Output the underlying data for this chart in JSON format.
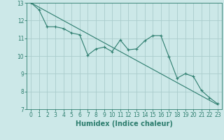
{
  "xlabel": "Humidex (Indice chaleur)",
  "ylabel": "",
  "bg_color": "#cce8e8",
  "grid_color": "#aacccc",
  "line_color": "#2d7d6e",
  "x_values": [
    0,
    1,
    2,
    3,
    4,
    5,
    6,
    7,
    8,
    9,
    10,
    11,
    12,
    13,
    14,
    15,
    16,
    17,
    18,
    19,
    20,
    21,
    22,
    23
  ],
  "y_values": [
    13.0,
    12.6,
    11.65,
    11.65,
    11.55,
    11.3,
    11.2,
    10.05,
    10.4,
    10.5,
    10.25,
    10.9,
    10.35,
    10.4,
    10.85,
    11.15,
    11.15,
    9.95,
    8.75,
    9.0,
    8.85,
    8.05,
    7.65,
    7.3
  ],
  "trend_x": [
    0,
    23
  ],
  "trend_y": [
    13.0,
    7.25
  ],
  "xlim": [
    -0.5,
    23.5
  ],
  "ylim": [
    7,
    13
  ],
  "yticks": [
    7,
    8,
    9,
    10,
    11,
    12,
    13
  ],
  "xticks": [
    0,
    1,
    2,
    3,
    4,
    5,
    6,
    7,
    8,
    9,
    10,
    11,
    12,
    13,
    14,
    15,
    16,
    17,
    18,
    19,
    20,
    21,
    22,
    23
  ],
  "xlabel_fontsize": 7,
  "tick_fontsize": 5.5
}
